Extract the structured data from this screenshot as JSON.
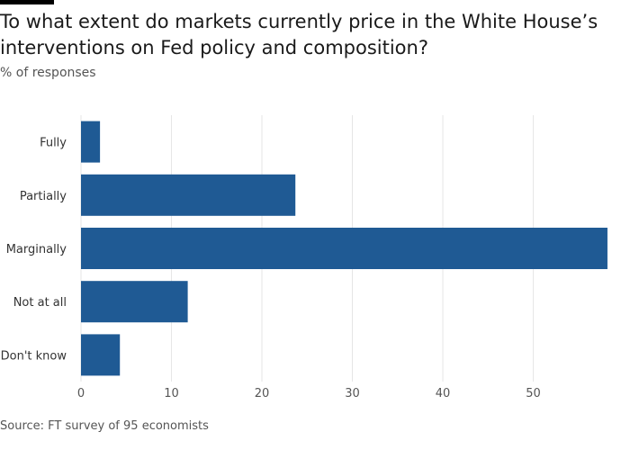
{
  "header": {
    "title": "To what extent do markets currently price in the White House’s interventions on Fed policy and composition?",
    "subtitle": "% of responses"
  },
  "footer": {
    "source": "Source: FT survey of 95 economists"
  },
  "colors": {
    "bar": "#1f5a94",
    "grid": "#e6e6e6",
    "tick_text": "#555555",
    "category_text": "#333333"
  },
  "chart_data": {
    "type": "bar",
    "orientation": "horizontal",
    "categories": [
      "Fully",
      "Partially",
      "Marginally",
      "Not at all",
      "Don't know"
    ],
    "values": [
      2.1,
      23.7,
      58.2,
      11.8,
      4.3
    ],
    "xlim": [
      0,
      59
    ],
    "xticks": [
      0,
      10,
      20,
      30,
      40,
      50
    ],
    "grid": true
  }
}
